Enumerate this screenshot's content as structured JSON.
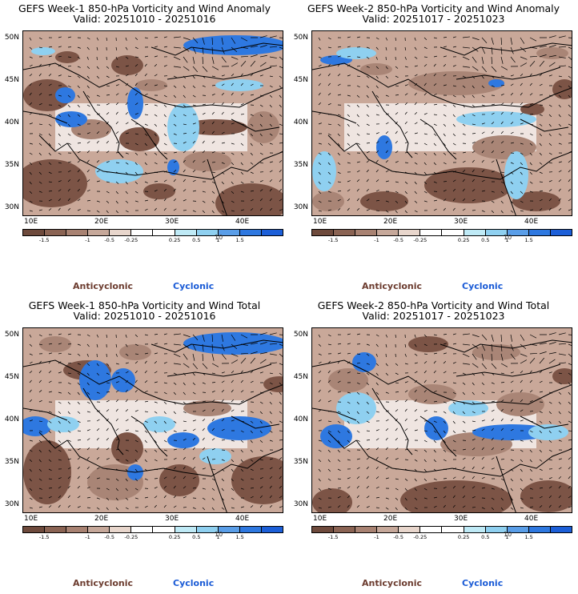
{
  "panels": [
    {
      "title_line1": "GEFS Week-1 850-hPa Vorticity and Wind Anomaly",
      "title_line2": "Valid: 20251010 - 20251016",
      "blobs": "p1"
    },
    {
      "title_line1": "GEFS Week-2 850-hPa Vorticity and Wind Anomaly",
      "title_line2": "Valid: 20251017 - 20251023",
      "blobs": "p2"
    },
    {
      "title_line1": "GEFS Week-1 850-hPa Vorticity and Wind Total",
      "title_line2": "Valid: 20251010 - 20251016",
      "blobs": "p3"
    },
    {
      "title_line1": "GEFS Week-2 850-hPa Vorticity and Wind Total",
      "title_line2": "Valid: 20251017 - 20251023",
      "blobs": "p4"
    }
  ],
  "lat_labels": [
    "50N",
    "45N",
    "40N",
    "35N",
    "30N"
  ],
  "lon_labels": [
    "10E",
    "20E",
    "30E",
    "40E"
  ],
  "colorbar": {
    "ticks": [
      "-1.5",
      "-1",
      "-0.5",
      "-0.25",
      "0.25",
      "0.5",
      "1",
      "1.5"
    ],
    "unit": "10",
    "colors": [
      "#6e4a3c",
      "#8a6353",
      "#a88272",
      "#c6a89a",
      "#e8d6cc",
      "#ffffff",
      "#ffffff",
      "#bfeaf6",
      "#8fd0f0",
      "#5a9ee8",
      "#2e78e0",
      "#1c5fd8"
    ]
  },
  "legend": {
    "anticyclonic": "Anticyclonic",
    "cyclonic": "Cyclonic"
  }
}
